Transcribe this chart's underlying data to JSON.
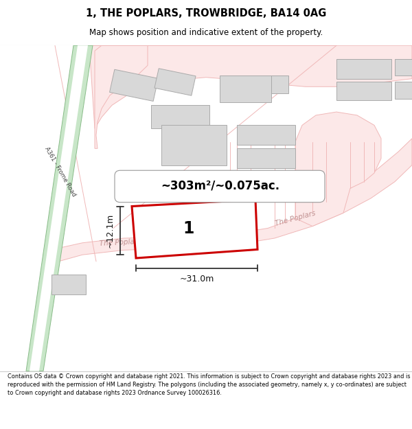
{
  "title": "1, THE POPLARS, TROWBRIDGE, BA14 0AG",
  "subtitle": "Map shows position and indicative extent of the property.",
  "footer": "Contains OS data © Crown copyright and database right 2021. This information is subject to Crown copyright and database rights 2023 and is reproduced with the permission of HM Land Registry. The polygons (including the associated geometry, namely x, y co-ordinates) are subject to Crown copyright and database rights 2023 Ordnance Survey 100026316.",
  "area_label": "~303m²/~0.075ac.",
  "plot_number": "1",
  "dim_width": "~31.0m",
  "dim_height": "~12.1m",
  "bg_color": "#f9f3f3",
  "road_color": "#f0b8b8",
  "road_fill": "#fce8e8",
  "building_fill": "#d8d8d8",
  "building_edge": "#aaaaaa",
  "plot_edge": "#cc0000",
  "green_fill": "#c8e6c8",
  "green_edge": "#88bb88",
  "road_label_color": "#c09090",
  "a361_label_color": "#444444"
}
